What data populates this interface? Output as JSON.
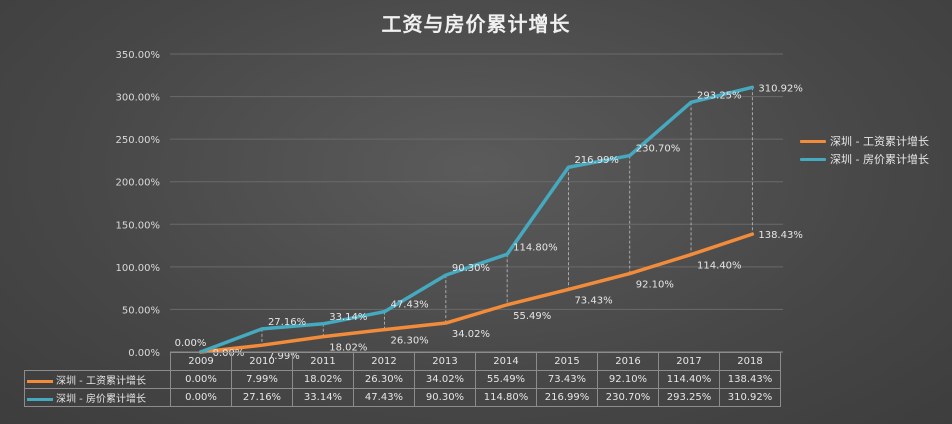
{
  "title": "工资与房价累计增长",
  "colors": {
    "wage": "#f28c3a",
    "housing": "#45a9bf"
  },
  "chart_data": {
    "type": "line",
    "title": "工资与房价累计增长",
    "categories": [
      "2009",
      "2010",
      "2011",
      "2012",
      "2013",
      "2014",
      "2015",
      "2016",
      "2017",
      "2018"
    ],
    "ylim": [
      0,
      350
    ],
    "y_ticks": [
      "0.00%",
      "50.00%",
      "100.00%",
      "150.00%",
      "200.00%",
      "250.00%",
      "300.00%",
      "350.00%"
    ],
    "grid": true,
    "legend_position": "right",
    "series": [
      {
        "name": "深圳 - 工资累计增长",
        "values": [
          0,
          7.99,
          18.02,
          26.3,
          34.02,
          55.49,
          73.43,
          92.1,
          114.4,
          138.43
        ],
        "labels": [
          "0.00%",
          "7.99%",
          "18.02%",
          "26.30%",
          "34.02%",
          "55.49%",
          "73.43%",
          "92.10%",
          "114.40%",
          "138.43%"
        ]
      },
      {
        "name": "深圳 - 房价累计增长",
        "values": [
          0,
          27.16,
          33.14,
          47.43,
          90.3,
          114.8,
          216.99,
          230.7,
          293.25,
          310.92
        ],
        "labels": [
          "0.00%",
          "27.16%",
          "33.14%",
          "47.43%",
          "90.30%",
          "114.80%",
          "216.99%",
          "230.70%",
          "293.25%",
          "310.92%"
        ]
      }
    ]
  }
}
